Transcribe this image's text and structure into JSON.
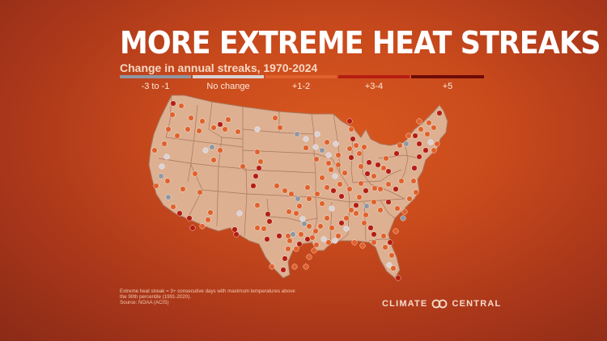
{
  "title": "MORE EXTREME HEAT STREAKS",
  "subtitle": "Change in annual streaks, 1970-2024",
  "legend": [
    {
      "label": "-3 to -1",
      "color": "#8f97a3"
    },
    {
      "label": "No change",
      "color": "#d9d3d6"
    },
    {
      "label": "+1-2",
      "color": "#e0612b"
    },
    {
      "label": "+3-4",
      "color": "#b51d12"
    },
    {
      "label": "+5",
      "color": "#6e0b07"
    }
  ],
  "footnote": {
    "line1": "Extreme heat streak = 3+ consecutive days with maximum temperatures above",
    "line2": "the 90th percentile (1991-2020).",
    "line3": "Source: NOAA (ACIS)"
  },
  "brand": {
    "left": "CLIMATE",
    "right": "CENTRAL",
    "logo_icon": "climate-central-logo-icon"
  },
  "map": {
    "fill": "#ddb092",
    "stroke": "#a9765c",
    "dot_stroke": "#ffffff"
  }
}
